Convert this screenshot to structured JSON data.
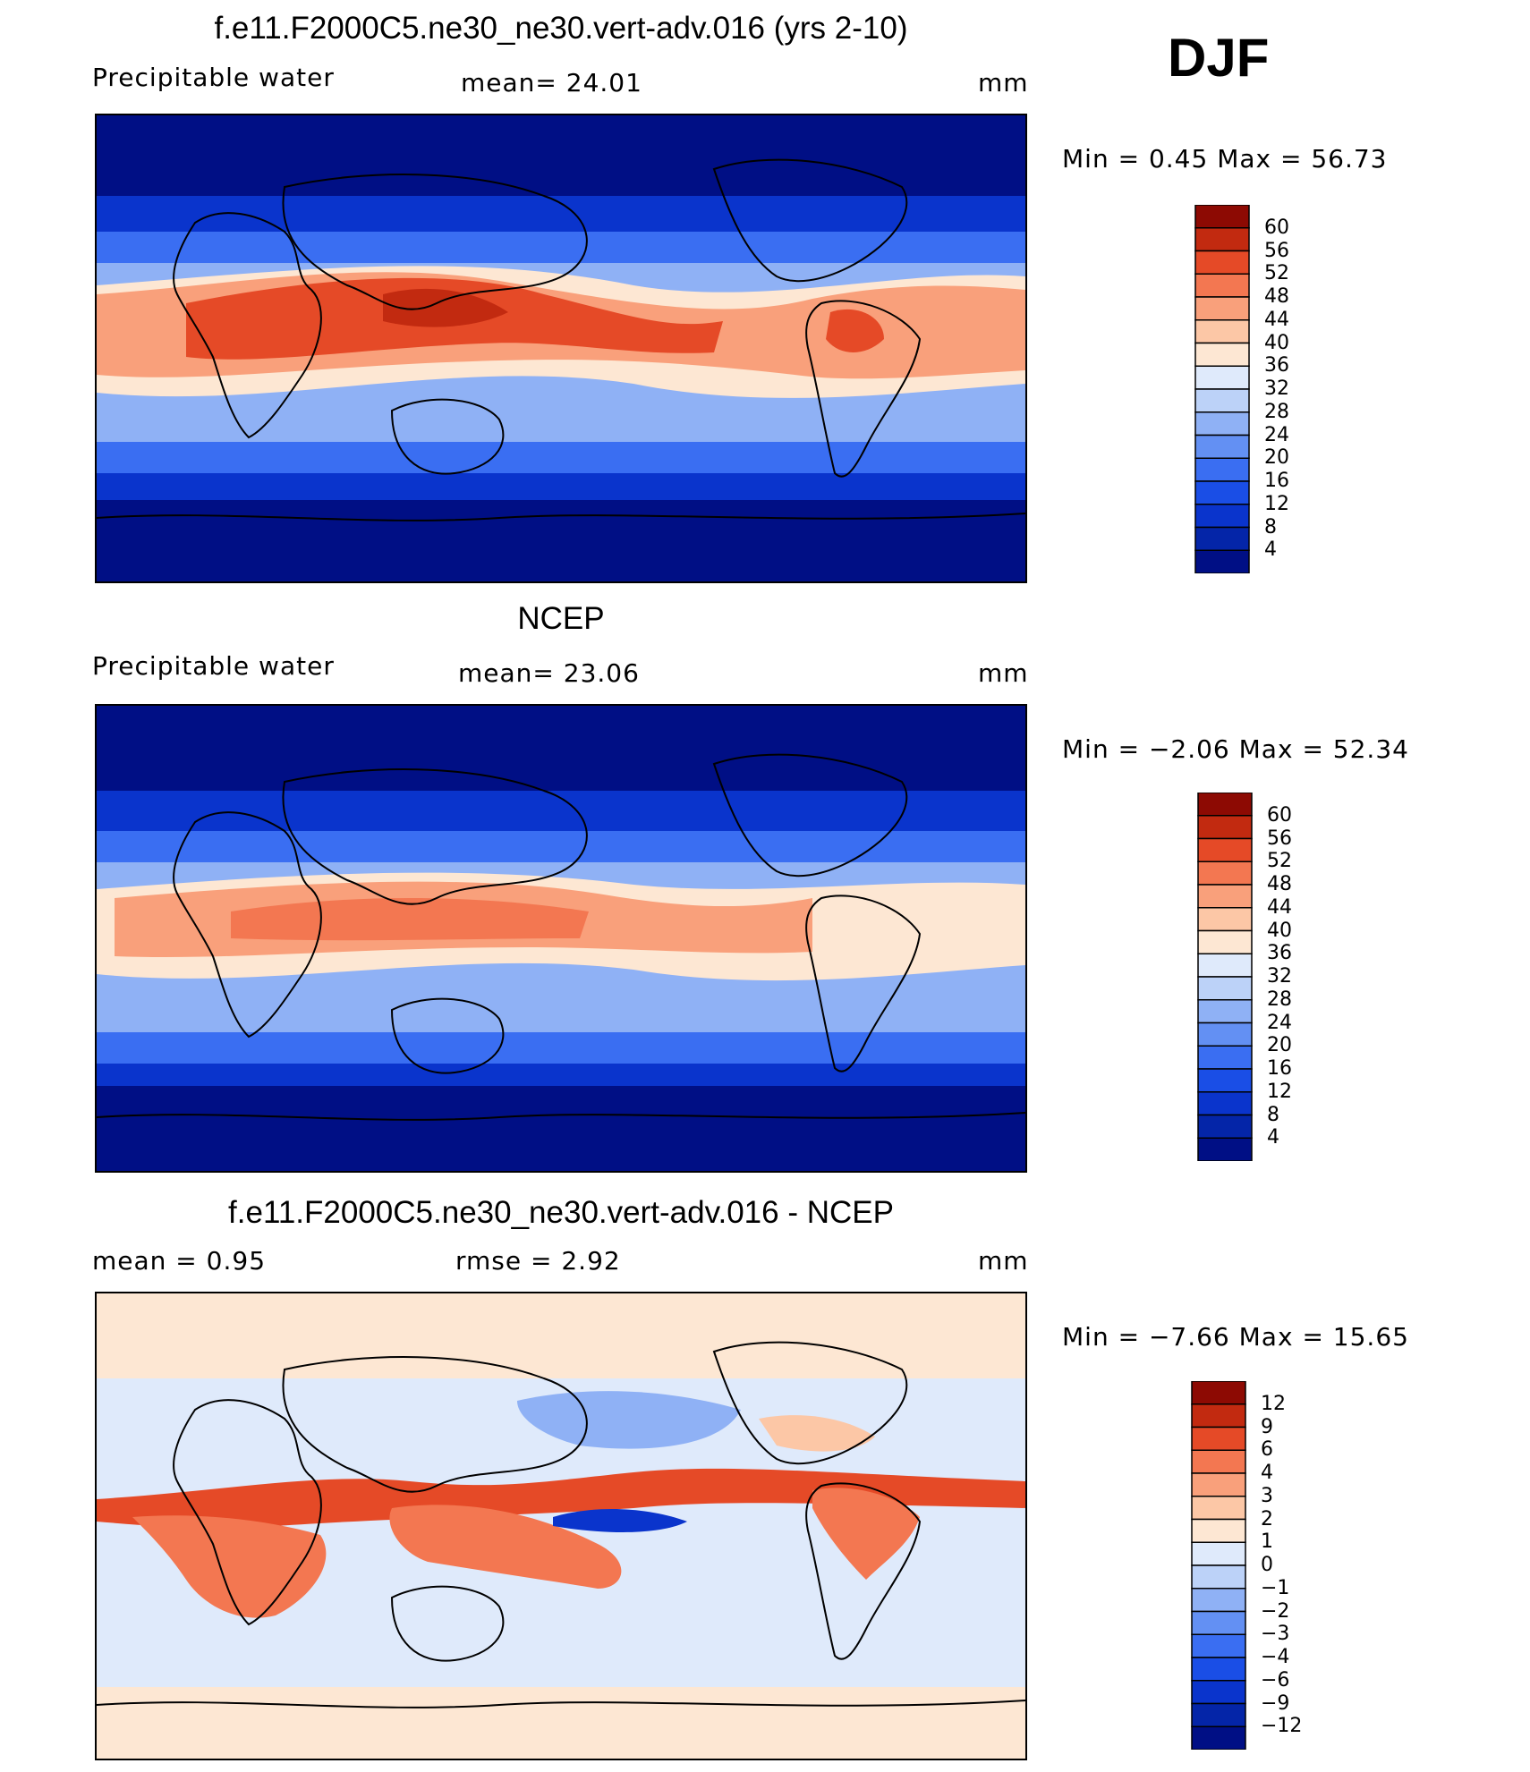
{
  "season": "DJF",
  "units": "mm",
  "panels": [
    {
      "id": "model",
      "title": "f.e11.F2000C5.ne30_ne30.vert-adv.016 (yrs 2-10)",
      "left_label": "Precipitable  water",
      "center_label": "mean=   24.01",
      "right_label": "mm",
      "minmax": "Min  =     0.45  Max  =    56.73",
      "colorbar_levels": [
        "60",
        "56",
        "52",
        "48",
        "44",
        "40",
        "36",
        "32",
        "28",
        "24",
        "20",
        "16",
        "12",
        "8",
        "4"
      ]
    },
    {
      "id": "obs",
      "title": "NCEP",
      "left_label": "Precipitable  water",
      "center_label": "mean=   23.06",
      "right_label": "mm",
      "minmax": "Min  =   −2.06  Max  =    52.34",
      "colorbar_levels": [
        "60",
        "56",
        "52",
        "48",
        "44",
        "40",
        "36",
        "32",
        "28",
        "24",
        "20",
        "16",
        "12",
        "8",
        "4"
      ]
    },
    {
      "id": "diff",
      "title": "f.e11.F2000C5.ne30_ne30.vert-adv.016 - NCEP",
      "left_label": "mean  =      0.95",
      "center_label": "rmse  =      2.92",
      "right_label": "mm",
      "minmax": "Min  =   −7.66  Max  =    15.65",
      "colorbar_levels": [
        "12",
        "9",
        "6",
        "4",
        "3",
        "2",
        "1",
        "0",
        "−1",
        "−2",
        "−3",
        "−4",
        "−6",
        "−9",
        "−12"
      ]
    }
  ],
  "palette_abs": [
    "#000f85",
    "#0425a8",
    "#0a34cc",
    "#1a4ee6",
    "#3a6ef2",
    "#6390f3",
    "#8fb1f5",
    "#bcd2f8",
    "#dfeafb",
    "#fde7d3",
    "#fcc7a6",
    "#f9a07b",
    "#f37751",
    "#e54a27",
    "#c22a10",
    "#8d0a03"
  ],
  "palette_diff": [
    "#000f85",
    "#0425a8",
    "#0a34cc",
    "#1a4ee6",
    "#3a6ef2",
    "#6390f3",
    "#8fb1f5",
    "#bcd2f8",
    "#dfeafb",
    "#fde7d3",
    "#fcc7a6",
    "#f9a07b",
    "#f37751",
    "#e54a27",
    "#c22a10",
    "#8d0a03"
  ]
}
